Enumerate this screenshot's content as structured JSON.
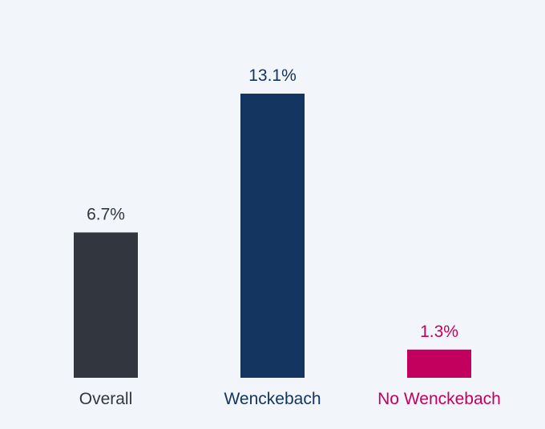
{
  "chart_data": {
    "type": "bar",
    "categories": [
      "Overall",
      "Wenckebach",
      "No Wenckebach"
    ],
    "values": [
      6.7,
      13.1,
      1.3
    ],
    "value_labels": [
      "6.7%",
      "13.1%",
      "1.3%"
    ],
    "colors": [
      "#32363e",
      "#143560",
      "#c4005e"
    ],
    "title": "",
    "xlabel": "",
    "ylabel": "",
    "ylim": [
      0,
      14.5
    ],
    "grid": false,
    "legend": "none"
  }
}
